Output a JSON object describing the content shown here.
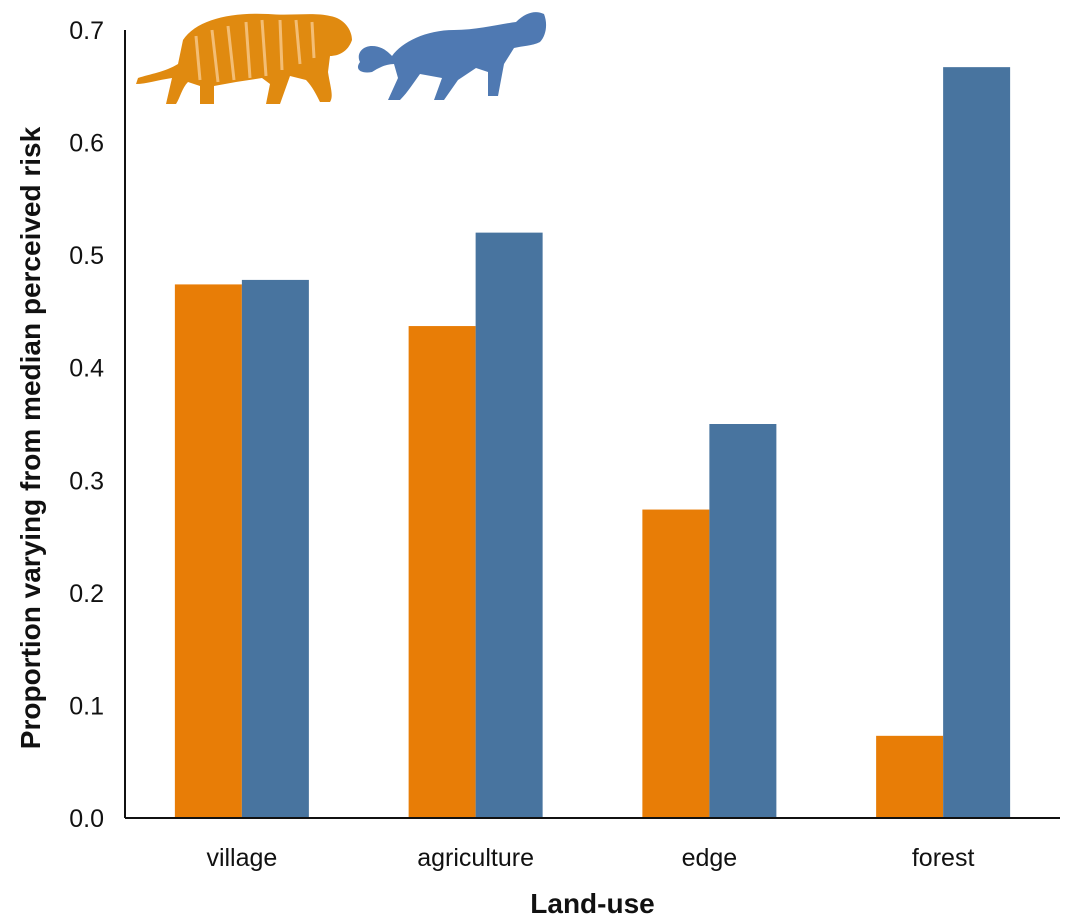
{
  "chart_data": {
    "type": "bar",
    "title": "",
    "xlabel": "Land-use",
    "ylabel": "Proportion varying from median perceived risk",
    "categories": [
      "village",
      "agriculture",
      "edge",
      "forest"
    ],
    "series": [
      {
        "color": "#e87d06",
        "icon": "tiger-silhouette-icon",
        "values": [
          0.474,
          0.437,
          0.274,
          0.073
        ]
      },
      {
        "color": "#48749f",
        "icon": "leopard-silhouette-icon",
        "values": [
          0.478,
          0.52,
          0.35,
          0.667
        ]
      }
    ],
    "ylim": [
      0,
      0.7
    ],
    "yticks": [
      "0.0",
      "0.1",
      "0.2",
      "0.3",
      "0.4",
      "0.5",
      "0.6",
      "0.7"
    ],
    "grid": false,
    "legend": "none"
  }
}
